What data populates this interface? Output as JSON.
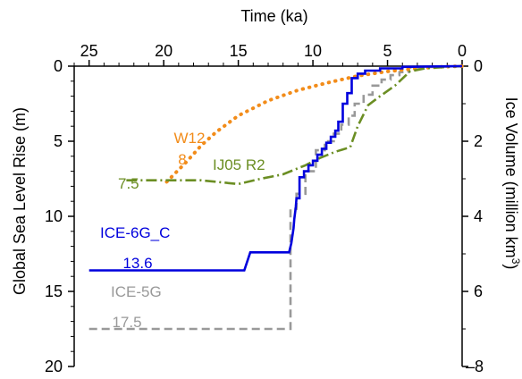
{
  "chart_data": {
    "type": "line",
    "xlabel": "Time (ka)",
    "ylabel": "Global Sea Level Rise (m)",
    "y2label_main": "Ice Volume (million km",
    "y2label_sup": "3",
    "y2label_end": ")",
    "xlim": [
      26,
      0
    ],
    "ylim": [
      0,
      20
    ],
    "y2lim": [
      0,
      8
    ],
    "x_ticks": [
      25,
      20,
      15,
      10,
      5,
      0
    ],
    "y_ticks": [
      0,
      5,
      10,
      15,
      20
    ],
    "y2_ticks": [
      0,
      2,
      4,
      6,
      8
    ],
    "y2_ticks_labeled": [
      0,
      2,
      4,
      6
    ],
    "y2_tick_last_label": "–8",
    "colors": {
      "ice6g": "#0000dd",
      "ice5g": "#999999",
      "w12": "#f28c1a",
      "j05": "#6b8e23",
      "axis": "#000000"
    },
    "series": [
      {
        "name": "ICE-6G_C",
        "value_label": "13.6",
        "color": "#0000dd",
        "style": "solid",
        "points": [
          [
            25,
            13.6
          ],
          [
            14.6,
            13.6
          ],
          [
            14.2,
            12.4
          ],
          [
            11.6,
            12.4
          ],
          [
            11.45,
            11.8
          ],
          [
            11.3,
            10.8
          ],
          [
            11.25,
            10.2
          ],
          [
            11.15,
            9.4
          ],
          [
            11.1,
            8.8
          ],
          [
            10.9,
            8.8
          ],
          [
            10.9,
            7.4
          ],
          [
            10.6,
            7.4
          ],
          [
            10.6,
            7.0
          ],
          [
            10.3,
            7.0
          ],
          [
            10.3,
            6.6
          ],
          [
            10.0,
            6.6
          ],
          [
            10.0,
            6.3
          ],
          [
            9.7,
            6.3
          ],
          [
            9.7,
            5.9
          ],
          [
            9.4,
            5.9
          ],
          [
            9.4,
            5.5
          ],
          [
            9.1,
            5.5
          ],
          [
            9.1,
            5.1
          ],
          [
            8.8,
            5.1
          ],
          [
            8.8,
            4.7
          ],
          [
            8.5,
            4.7
          ],
          [
            8.5,
            4.3
          ],
          [
            8.3,
            4.3
          ],
          [
            8.3,
            3.7
          ],
          [
            8.0,
            3.7
          ],
          [
            8.0,
            2.5
          ],
          [
            7.7,
            2.5
          ],
          [
            7.7,
            1.8
          ],
          [
            7.4,
            1.8
          ],
          [
            7.4,
            0.8
          ],
          [
            7.0,
            0.8
          ],
          [
            7.0,
            0.5
          ],
          [
            6.5,
            0.5
          ],
          [
            6.5,
            0.3
          ],
          [
            5.5,
            0.3
          ],
          [
            5.5,
            0.15
          ],
          [
            4.0,
            0.15
          ],
          [
            4.0,
            0.05
          ],
          [
            0,
            0
          ]
        ]
      },
      {
        "name": "ICE-5G",
        "value_label": "17.5",
        "color": "#999999",
        "style": "dashed",
        "points": [
          [
            25,
            17.5
          ],
          [
            11.5,
            17.5
          ],
          [
            11.5,
            9.5
          ],
          [
            11.1,
            9.5
          ],
          [
            11.1,
            8.5
          ],
          [
            10.5,
            8.5
          ],
          [
            10.5,
            7.0
          ],
          [
            9.8,
            7.0
          ],
          [
            9.8,
            5.6
          ],
          [
            9.2,
            5.6
          ],
          [
            9.2,
            5.0
          ],
          [
            8.6,
            5.0
          ],
          [
            8.6,
            4.5
          ],
          [
            8.1,
            4.5
          ],
          [
            8.1,
            3.9
          ],
          [
            7.6,
            3.9
          ],
          [
            7.6,
            3.3
          ],
          [
            7.2,
            3.3
          ],
          [
            7.2,
            2.5
          ],
          [
            6.6,
            2.5
          ],
          [
            6.6,
            1.9
          ],
          [
            6.0,
            1.9
          ],
          [
            6.0,
            1.3
          ],
          [
            5.4,
            1.3
          ],
          [
            5.4,
            0.9
          ],
          [
            4.8,
            0.9
          ],
          [
            4.8,
            0.6
          ],
          [
            4.2,
            0.6
          ],
          [
            4.2,
            0.4
          ],
          [
            3.6,
            0.4
          ],
          [
            3.6,
            0.1
          ],
          [
            0,
            0
          ]
        ]
      },
      {
        "name": "W12",
        "value_label": "8",
        "color": "#f28c1a",
        "style": "dotted",
        "points": [
          [
            19.8,
            7.7
          ],
          [
            18.5,
            6.4
          ],
          [
            17.5,
            5.3
          ],
          [
            16.5,
            4.4
          ],
          [
            15.0,
            3.3
          ],
          [
            13.0,
            2.3
          ],
          [
            11.0,
            1.6
          ],
          [
            9.0,
            1.1
          ],
          [
            7.0,
            0.65
          ],
          [
            5.0,
            0.35
          ],
          [
            3.0,
            0.15
          ],
          [
            1.5,
            0.05
          ],
          [
            0,
            0
          ]
        ]
      },
      {
        "name": "IJ05 R2",
        "value_label": "7.5",
        "color": "#6b8e23",
        "style": "dashdot",
        "points": [
          [
            22.5,
            7.6
          ],
          [
            20.0,
            7.6
          ],
          [
            17.5,
            7.6
          ],
          [
            15.0,
            7.85
          ],
          [
            13.5,
            7.5
          ],
          [
            12.0,
            7.2
          ],
          [
            10.5,
            6.6
          ],
          [
            9.5,
            6.1
          ],
          [
            8.5,
            5.7
          ],
          [
            7.5,
            5.4
          ],
          [
            7.0,
            4.0
          ],
          [
            6.3,
            2.6
          ],
          [
            5.5,
            2.0
          ],
          [
            4.5,
            1.3
          ],
          [
            3.5,
            0.35
          ],
          [
            2.5,
            0.15
          ],
          [
            1.0,
            0.05
          ],
          [
            0,
            0
          ]
        ]
      }
    ]
  }
}
